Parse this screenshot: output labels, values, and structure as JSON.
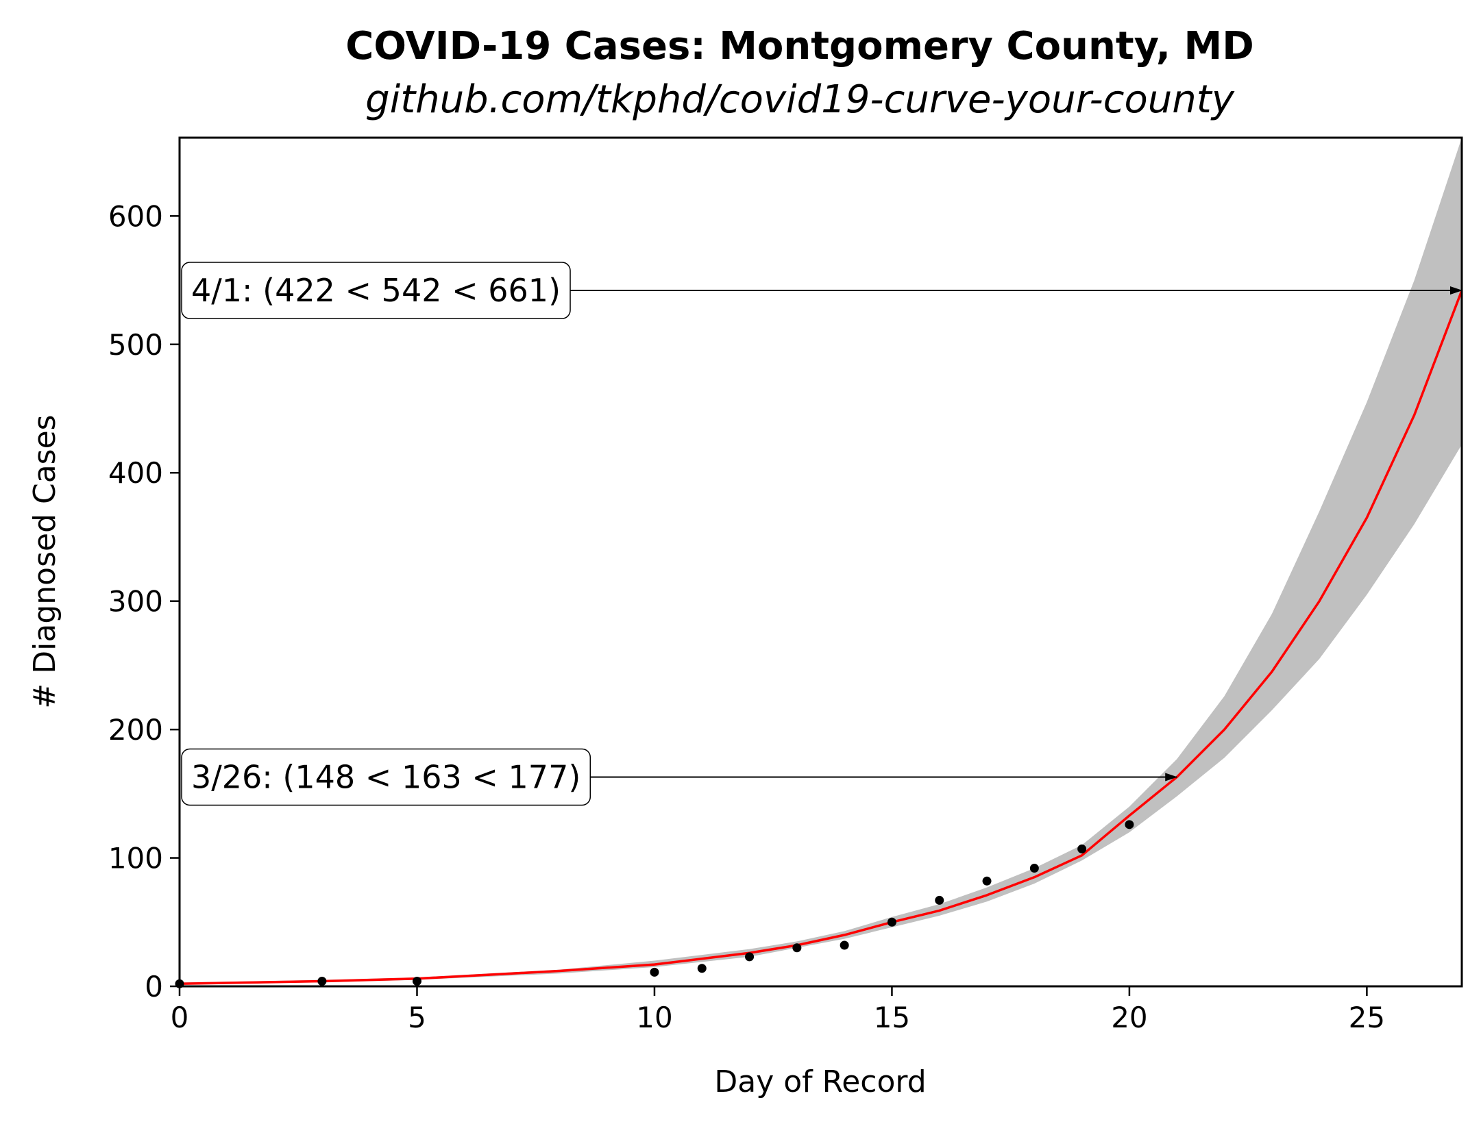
{
  "chart_data": {
    "type": "scatter",
    "title": "COVID-19 Cases: Montgomery County, MD",
    "subtitle": "github.com/tkphd/covid19-curve-your-county",
    "xlabel": "Day of Record",
    "ylabel": "# Diagnosed Cases",
    "xlim": [
      0,
      27
    ],
    "ylim": [
      0,
      661
    ],
    "xticks": [
      0,
      5,
      10,
      15,
      20,
      25
    ],
    "yticks": [
      0,
      100,
      200,
      300,
      400,
      500,
      600
    ],
    "grid": false,
    "series": [
      {
        "kind": "points",
        "color": "#000000",
        "x": [
          0,
          3,
          5,
          10,
          11,
          12,
          13,
          14,
          15,
          16,
          17,
          18,
          19,
          20
        ],
        "y": [
          2,
          4,
          4,
          11,
          14,
          23,
          30,
          32,
          50,
          67,
          82,
          92,
          107,
          126
        ]
      },
      {
        "kind": "fit",
        "color": "#ff0000",
        "x": [
          0,
          3,
          5,
          8,
          10,
          12,
          13,
          14,
          15,
          16,
          17,
          18,
          19,
          20,
          21,
          22,
          23,
          24,
          25,
          26,
          27
        ],
        "y": [
          2,
          4,
          6,
          12,
          17,
          26,
          32,
          40,
          50,
          59,
          71,
          85,
          102,
          133,
          163,
          200,
          245,
          300,
          365,
          445,
          542
        ]
      },
      {
        "kind": "band",
        "color": "#c0c0c0",
        "x": [
          0,
          3,
          5,
          8,
          10,
          12,
          13,
          14,
          15,
          16,
          17,
          18,
          19,
          20,
          21,
          22,
          23,
          24,
          25,
          26,
          27
        ],
        "lower": [
          2,
          3,
          5,
          10,
          15,
          23,
          30,
          37,
          46,
          55,
          66,
          80,
          98,
          120,
          148,
          178,
          215,
          255,
          305,
          360,
          422
        ],
        "upper": [
          3,
          5,
          7,
          13,
          20,
          29,
          35,
          43,
          54,
          64,
          77,
          92,
          110,
          140,
          177,
          226,
          290,
          370,
          455,
          550,
          661
        ]
      }
    ],
    "annotations": [
      {
        "text": "3/26: (148 < 163 < 177)",
        "x": 21,
        "y": 163
      },
      {
        "text": "4/1: (422 < 542 < 661)",
        "x": 27,
        "y": 542
      }
    ]
  }
}
